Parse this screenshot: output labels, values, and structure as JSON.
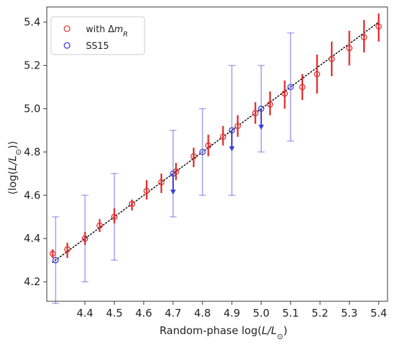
{
  "chart_data": {
    "type": "scatter",
    "xlabel_main": "Random-phase log(",
    "xlabel_sym": "L/L",
    "xlabel_sub": "⊙",
    "xlabel_end": ")",
    "ylabel_open": "⟨log(",
    "ylabel_sym": "L/L",
    "ylabel_sub": "⊙",
    "ylabel_end": ")⟩",
    "xlim": [
      4.27,
      5.43
    ],
    "ylim": [
      4.11,
      5.47
    ],
    "xticks": [
      "4.4",
      "4.5",
      "4.6",
      "4.7",
      "4.8",
      "4.9",
      "5.0",
      "5.1",
      "5.2",
      "5.3",
      "5.4"
    ],
    "yticks": [
      "4.2",
      "4.4",
      "4.6",
      "4.8",
      "5.0",
      "5.2",
      "5.4"
    ],
    "reference_line": {
      "style": "dotted",
      "color": "#000000",
      "x": [
        4.29,
        5.4
      ],
      "y": [
        4.29,
        5.4
      ]
    },
    "legend": {
      "location": "top-left",
      "entries": [
        {
          "label_main": "with Δ",
          "label_sym": "m",
          "label_sub": "R",
          "color": "#e03030"
        },
        {
          "label_main": "SS15",
          "label_sym": "",
          "label_sub": "",
          "color": "#3a3ad8"
        }
      ]
    },
    "series": [
      {
        "name": "with Δm_R",
        "color": "#e03030",
        "points": [
          {
            "x": 4.29,
            "y": 4.33,
            "lo": 4.31,
            "hi": 4.35
          },
          {
            "x": 4.34,
            "y": 4.35,
            "lo": 4.31,
            "hi": 4.38
          },
          {
            "x": 4.4,
            "y": 4.4,
            "lo": 4.37,
            "hi": 4.43
          },
          {
            "x": 4.45,
            "y": 4.46,
            "lo": 4.43,
            "hi": 4.49
          },
          {
            "x": 4.5,
            "y": 4.5,
            "lo": 4.47,
            "hi": 4.54
          },
          {
            "x": 4.56,
            "y": 4.56,
            "lo": 4.53,
            "hi": 4.58
          },
          {
            "x": 4.61,
            "y": 4.62,
            "lo": 4.58,
            "hi": 4.67
          },
          {
            "x": 4.66,
            "y": 4.66,
            "lo": 4.61,
            "hi": 4.7
          },
          {
            "x": 4.71,
            "y": 4.71,
            "lo": 4.67,
            "hi": 4.75
          },
          {
            "x": 4.77,
            "y": 4.78,
            "lo": 4.73,
            "hi": 4.82
          },
          {
            "x": 4.82,
            "y": 4.83,
            "lo": 4.78,
            "hi": 4.88
          },
          {
            "x": 4.87,
            "y": 4.87,
            "lo": 4.83,
            "hi": 4.92
          },
          {
            "x": 4.92,
            "y": 4.92,
            "lo": 4.87,
            "hi": 4.97
          },
          {
            "x": 4.98,
            "y": 4.98,
            "lo": 4.93,
            "hi": 5.03
          },
          {
            "x": 5.03,
            "y": 5.02,
            "lo": 4.97,
            "hi": 5.08
          },
          {
            "x": 5.08,
            "y": 5.07,
            "lo": 5.0,
            "hi": 5.13
          },
          {
            "x": 5.14,
            "y": 5.1,
            "lo": 5.04,
            "hi": 5.16
          },
          {
            "x": 5.19,
            "y": 5.16,
            "lo": 5.07,
            "hi": 5.25
          },
          {
            "x": 5.24,
            "y": 5.23,
            "lo": 5.15,
            "hi": 5.31
          },
          {
            "x": 5.3,
            "y": 5.28,
            "lo": 5.2,
            "hi": 5.36
          },
          {
            "x": 5.35,
            "y": 5.33,
            "lo": 5.26,
            "hi": 5.41
          },
          {
            "x": 5.4,
            "y": 5.38,
            "lo": 5.31,
            "hi": 5.44
          }
        ]
      },
      {
        "name": "SS15",
        "color": "#3a3ad8",
        "points": [
          {
            "x": 4.3,
            "y": 4.3,
            "lo": 4.1,
            "hi": 4.5
          },
          {
            "x": 4.4,
            "y": 4.4,
            "lo": 4.2,
            "hi": 4.6
          },
          {
            "x": 4.5,
            "y": 4.5,
            "lo": 4.3,
            "hi": 4.7
          },
          {
            "x": 4.7,
            "y": 4.7,
            "lo": 4.5,
            "hi": 4.9,
            "upper_limit": true
          },
          {
            "x": 4.8,
            "y": 4.8,
            "lo": 4.6,
            "hi": 5.0
          },
          {
            "x": 4.9,
            "y": 4.9,
            "lo": 4.6,
            "hi": 5.2,
            "upper_limit": true
          },
          {
            "x": 5.0,
            "y": 5.0,
            "lo": 4.8,
            "hi": 5.2,
            "upper_limit": true
          },
          {
            "x": 5.1,
            "y": 5.1,
            "lo": 4.85,
            "hi": 5.35
          }
        ]
      }
    ]
  }
}
